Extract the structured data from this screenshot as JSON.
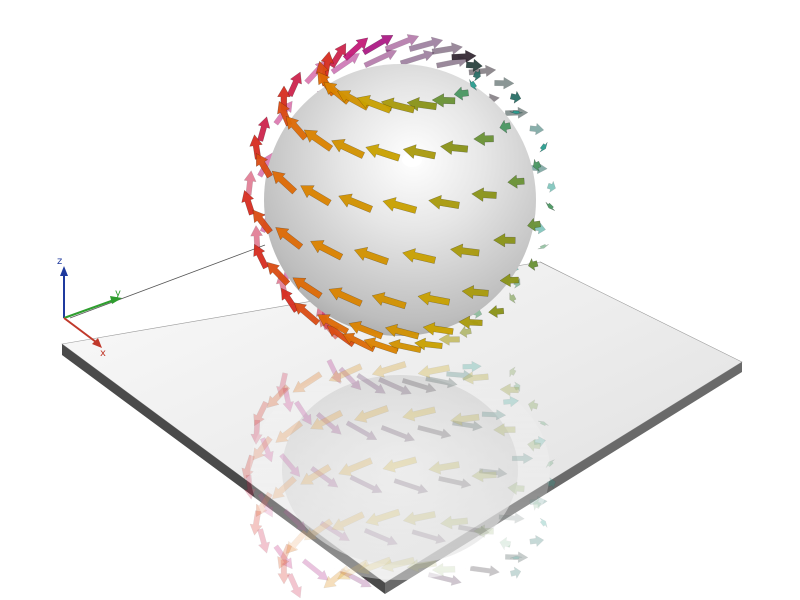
{
  "scene": {
    "kind": "3d-render",
    "subject": "vector-field-on-sphere",
    "background_color": "#ffffff",
    "sphere_color": "#d8d8d8",
    "floor_color": "#f4f4f4",
    "floor_edge_color": "#5a5a5a",
    "reflection": true
  },
  "axes_triad": {
    "x_color": "#c0392b",
    "y_color": "#2e9e2e",
    "z_color": "#1f3a9e",
    "x_label": "x",
    "y_label": "y",
    "z_label": "z"
  },
  "vector_field": {
    "glyph": "arrow-icon",
    "rings": 7,
    "arrows_per_ring": 20,
    "color_mapping": "hue-by-longitude",
    "palette": [
      "#2a9d8f",
      "#7a8f1e",
      "#c9a100",
      "#e07b00",
      "#d62d20",
      "#c0178f",
      "#5b2a5e",
      "#2b2b2b"
    ]
  }
}
